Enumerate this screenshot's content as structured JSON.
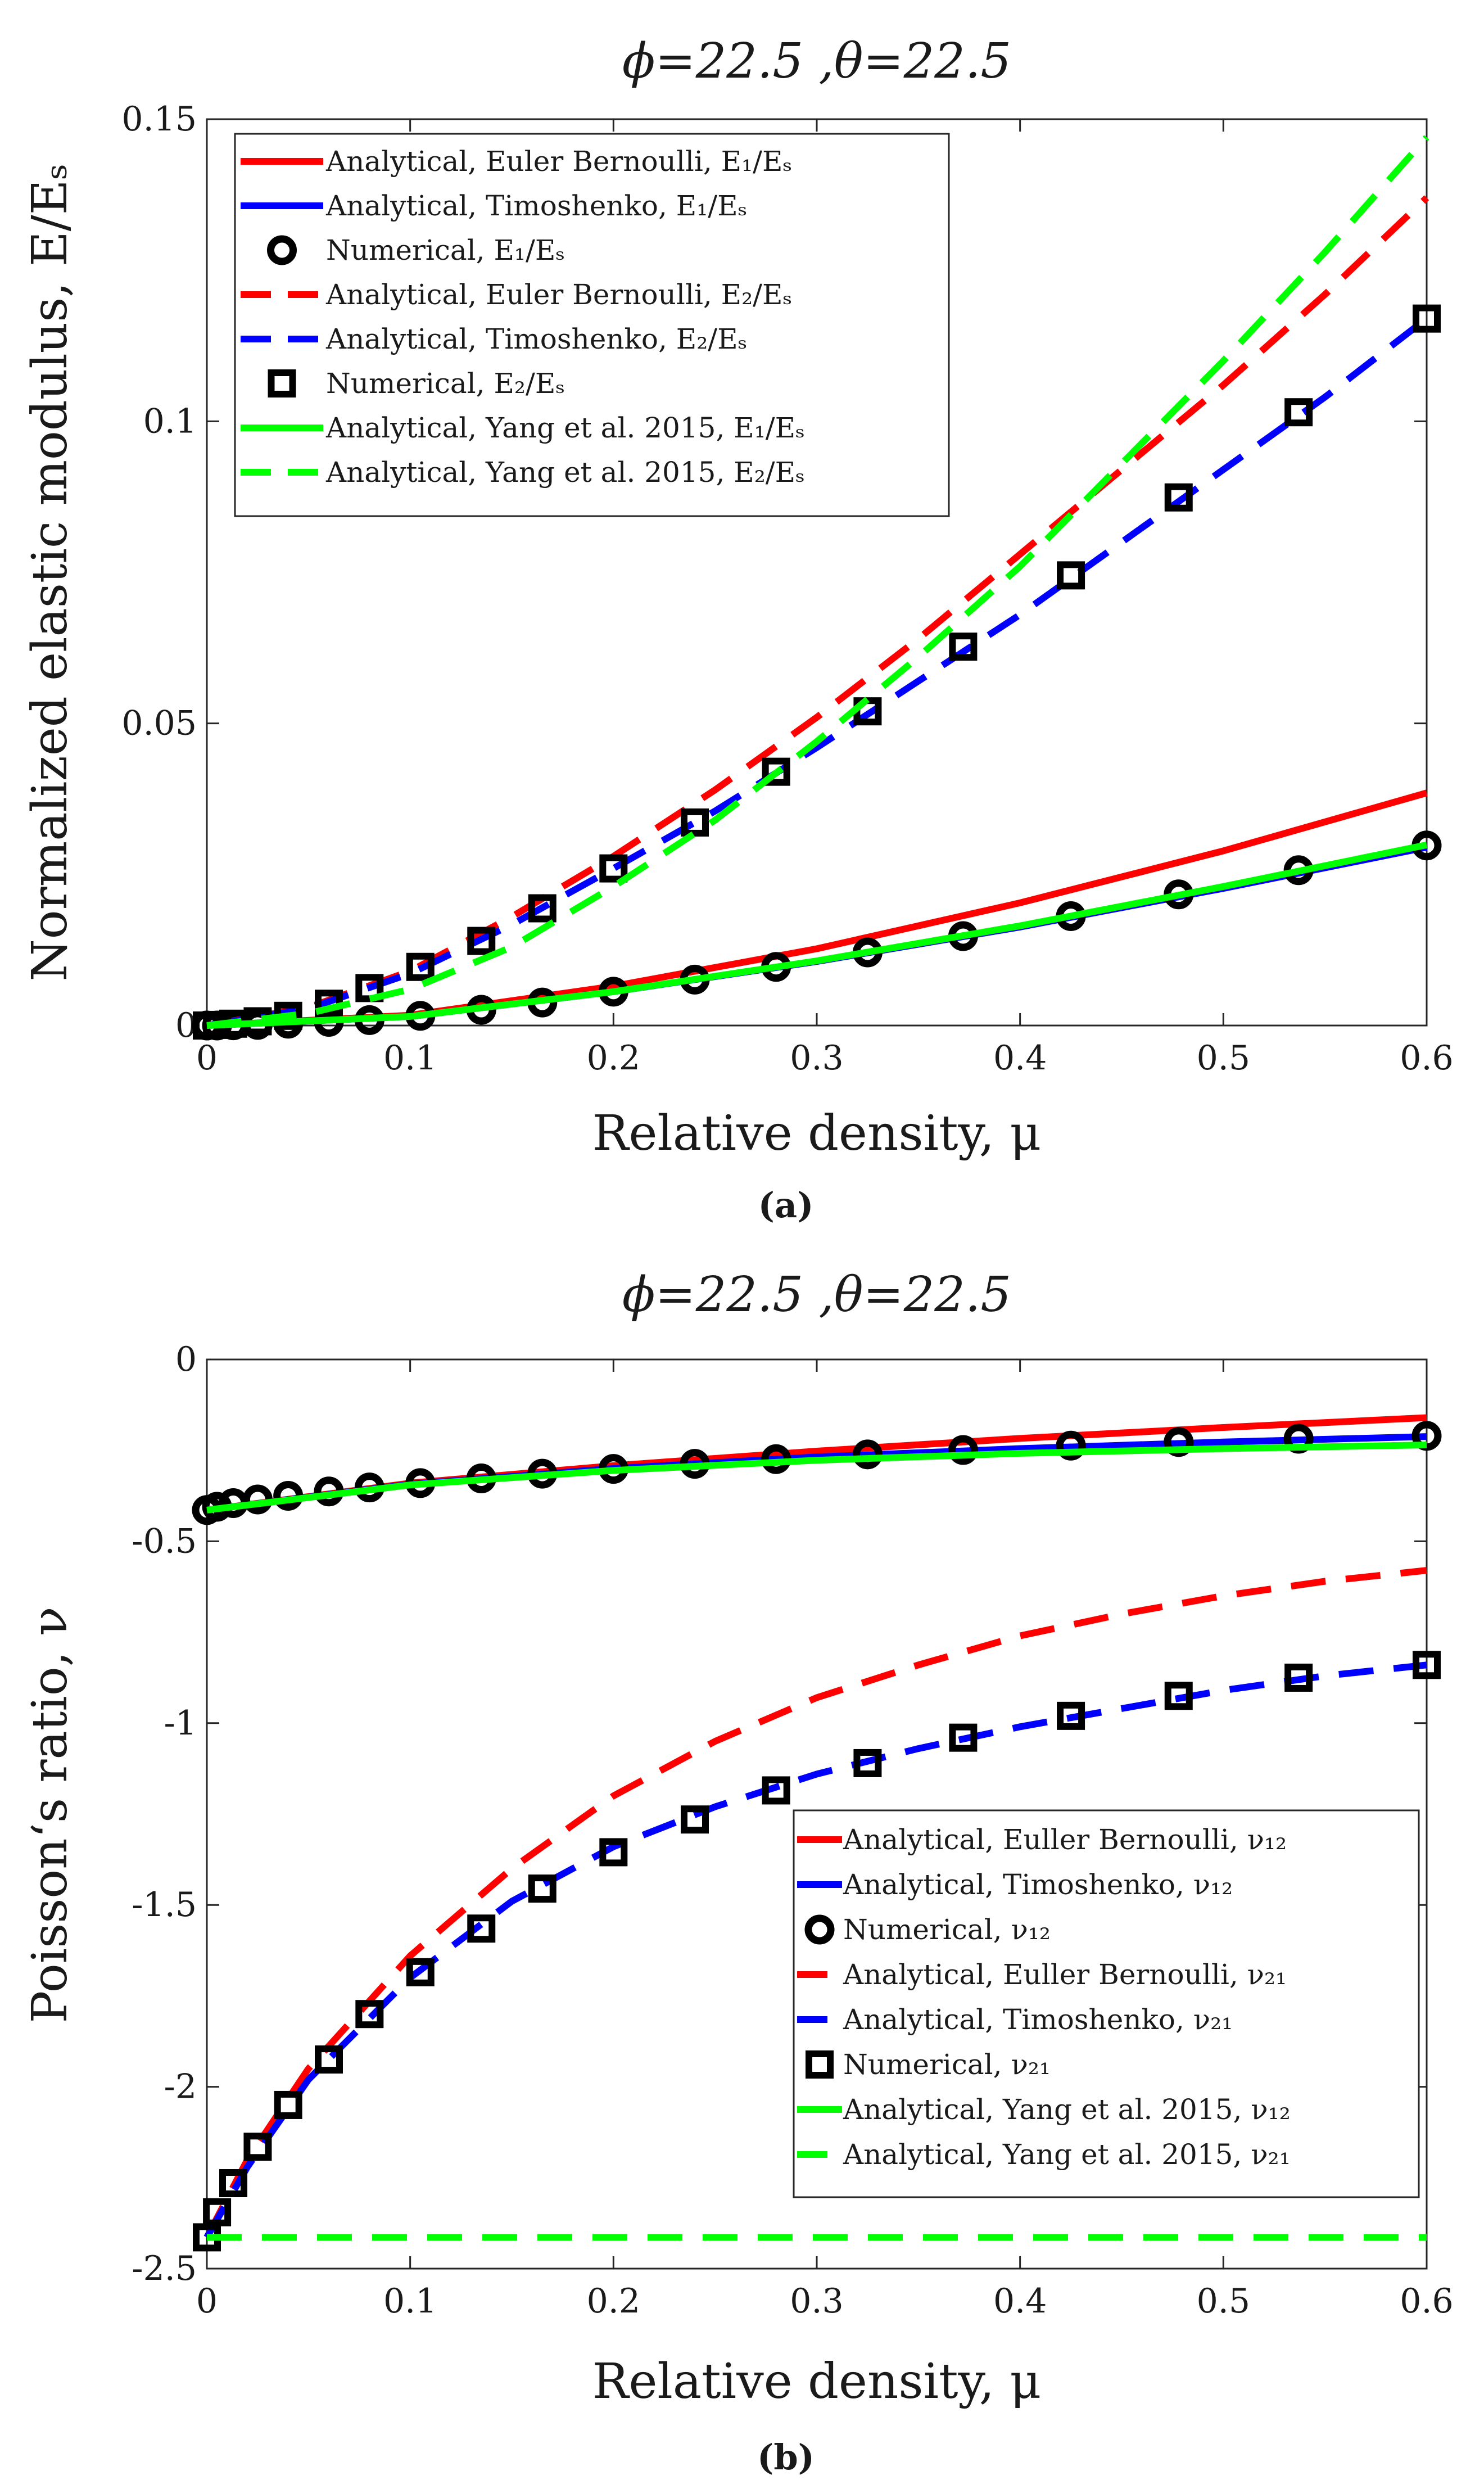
{
  "chart_data": [
    {
      "panel_label": "(a)",
      "type": "line",
      "title": "ϕ=22.5 ,θ=22.5",
      "xlabel": "Relative density, μ",
      "ylabel": "Normalized elastic modulus, E/Eₛ",
      "xlim": [
        0,
        0.6
      ],
      "ylim": [
        0,
        0.15
      ],
      "xticks": [
        "0",
        "0.1",
        "0.2",
        "0.3",
        "0.4",
        "0.5",
        "0.6"
      ],
      "yticks": [
        "0",
        "0.05",
        "0.1",
        "0.15"
      ],
      "legend": {
        "position": "top-left"
      },
      "series": [
        {
          "name": "Analytical, Euler Bernoulli, E₁/Eₛ",
          "style": "solid",
          "color": "#ff0000",
          "marker": "none",
          "x": [
            0,
            0.1,
            0.2,
            0.3,
            0.4,
            0.5,
            0.6
          ],
          "y": [
            0,
            0.0017,
            0.0065,
            0.0127,
            0.0203,
            0.0289,
            0.0385
          ]
        },
        {
          "name": "Analytical, Timoshenko, E₁/Eₛ",
          "style": "solid",
          "color": "#0000ff",
          "marker": "none",
          "x": [
            0,
            0.1,
            0.2,
            0.3,
            0.4,
            0.5,
            0.6
          ],
          "y": [
            0,
            0.0015,
            0.0056,
            0.0106,
            0.0163,
            0.0227,
            0.0295
          ]
        },
        {
          "name": "Numerical, E₁/Eₛ",
          "style": "none",
          "color": "#000000",
          "marker": "circle",
          "x": [
            0,
            0.005,
            0.013,
            0.025,
            0.04,
            0.06,
            0.08,
            0.105,
            0.135,
            0.165,
            0.2,
            0.24,
            0.28,
            0.325,
            0.372,
            0.425,
            0.478,
            0.537,
            0.6
          ],
          "y": [
            0,
            0,
            3e-05,
            0.0001,
            0.0003,
            0.0006,
            0.0009,
            0.0016,
            0.0026,
            0.0038,
            0.0056,
            0.0076,
            0.0097,
            0.0121,
            0.0148,
            0.0181,
            0.0217,
            0.0257,
            0.0298
          ]
        },
        {
          "name": "Analytical, Euler Bernoulli, E₂/Eₛ",
          "style": "dashed",
          "color": "#ff0000",
          "marker": "none",
          "x": [
            0,
            0.05,
            0.1,
            0.15,
            0.2,
            0.25,
            0.3,
            0.35,
            0.4,
            0.45,
            0.5,
            0.55,
            0.6
          ],
          "y": [
            0,
            0.003,
            0.009,
            0.018,
            0.028,
            0.039,
            0.051,
            0.064,
            0.078,
            0.092,
            0.106,
            0.121,
            0.137
          ]
        },
        {
          "name": "Analytical, Timoshenko, E₂/Eₛ",
          "style": "dashed",
          "color": "#0000ff",
          "marker": "none",
          "x": [
            0,
            0.05,
            0.1,
            0.15,
            0.2,
            0.25,
            0.3,
            0.35,
            0.4,
            0.45,
            0.5,
            0.55,
            0.6
          ],
          "y": [
            0,
            0.0028,
            0.0086,
            0.0167,
            0.026,
            0.0355,
            0.046,
            0.057,
            0.068,
            0.08,
            0.092,
            0.104,
            0.117
          ]
        },
        {
          "name": "Numerical, E₂/Eₛ",
          "style": "none",
          "color": "#000000",
          "marker": "square",
          "x": [
            0,
            0.005,
            0.013,
            0.025,
            0.04,
            0.06,
            0.08,
            0.105,
            0.135,
            0.165,
            0.2,
            0.24,
            0.28,
            0.325,
            0.372,
            0.425,
            0.478,
            0.537,
            0.6
          ],
          "y": [
            0,
            0.0001,
            0.0003,
            0.0007,
            0.0016,
            0.0036,
            0.0062,
            0.0097,
            0.014,
            0.0194,
            0.026,
            0.0336,
            0.042,
            0.052,
            0.0627,
            0.0745,
            0.0874,
            0.1015,
            0.117
          ]
        },
        {
          "name": "Analytical, Yang et al. 2015, E₁/Eₛ",
          "style": "solid",
          "color": "#00ff00",
          "marker": "none",
          "x": [
            0,
            0.1,
            0.2,
            0.3,
            0.4,
            0.5,
            0.6
          ],
          "y": [
            0,
            0.0015,
            0.0056,
            0.0107,
            0.0165,
            0.023,
            0.0299
          ]
        },
        {
          "name": "Analytical, Yang et al. 2015, E₂/Eₛ",
          "style": "dashed",
          "color": "#00ff00",
          "marker": "none",
          "x": [
            0,
            0.05,
            0.1,
            0.15,
            0.2,
            0.25,
            0.3,
            0.35,
            0.4,
            0.45,
            0.5,
            0.55,
            0.6
          ],
          "y": [
            0,
            0.002,
            0.006,
            0.013,
            0.023,
            0.034,
            0.047,
            0.061,
            0.076,
            0.093,
            0.11,
            0.128,
            0.147
          ]
        }
      ]
    },
    {
      "panel_label": "(b)",
      "type": "line",
      "title": "ϕ=22.5 ,θ=22.5",
      "xlabel": "Relative density, μ",
      "ylabel": "Poisson‘s ratio, ν",
      "xlim": [
        0,
        0.6
      ],
      "ylim": [
        -2.5,
        0
      ],
      "xticks": [
        "0",
        "0.1",
        "0.2",
        "0.3",
        "0.4",
        "0.5",
        "0.6"
      ],
      "yticks": [
        "0",
        "-0.5",
        "-1",
        "-1.5",
        "-2",
        "-2.5"
      ],
      "legend": {
        "position": "bottom-right"
      },
      "series": [
        {
          "name": "Analytical, Euller Bernoulli, ν₁₂",
          "style": "solid",
          "color": "#ff0000",
          "marker": "none",
          "x": [
            0,
            0.1,
            0.2,
            0.3,
            0.4,
            0.5,
            0.6
          ],
          "y": [
            -0.414,
            -0.34,
            -0.292,
            -0.252,
            -0.217,
            -0.187,
            -0.16
          ]
        },
        {
          "name": "Analytical, Timoshenko, ν₁₂",
          "style": "solid",
          "color": "#0000ff",
          "marker": "none",
          "x": [
            0,
            0.1,
            0.2,
            0.3,
            0.4,
            0.5,
            0.6
          ],
          "y": [
            -0.414,
            -0.343,
            -0.3,
            -0.268,
            -0.245,
            -0.227,
            -0.212
          ]
        },
        {
          "name": "Numerical, ν₁₂",
          "style": "none",
          "color": "#000000",
          "marker": "circle",
          "x": [
            0,
            0.005,
            0.013,
            0.025,
            0.04,
            0.06,
            0.08,
            0.105,
            0.135,
            0.165,
            0.2,
            0.24,
            0.28,
            0.325,
            0.372,
            0.425,
            0.478,
            0.537,
            0.6
          ],
          "y": [
            -0.414,
            -0.405,
            -0.395,
            -0.385,
            -0.375,
            -0.363,
            -0.352,
            -0.34,
            -0.327,
            -0.314,
            -0.301,
            -0.287,
            -0.274,
            -0.261,
            -0.249,
            -0.237,
            -0.227,
            -0.218,
            -0.21
          ]
        },
        {
          "name": "Analytical, Euller Bernoulli, ν₂₁",
          "style": "dashed",
          "color": "#ff0000",
          "marker": "none",
          "x": [
            0,
            0.02,
            0.05,
            0.1,
            0.15,
            0.2,
            0.25,
            0.3,
            0.35,
            0.4,
            0.45,
            0.5,
            0.55,
            0.6
          ],
          "y": [
            -2.414,
            -2.2,
            -1.95,
            -1.64,
            -1.4,
            -1.2,
            -1.05,
            -0.93,
            -0.84,
            -0.76,
            -0.7,
            -0.65,
            -0.61,
            -0.58
          ]
        },
        {
          "name": "Analytical, Timoshenko, ν₂₁",
          "style": "dashed",
          "color": "#0000ff",
          "marker": "none",
          "x": [
            0,
            0.02,
            0.05,
            0.1,
            0.15,
            0.2,
            0.25,
            0.3,
            0.35,
            0.4,
            0.45,
            0.5,
            0.55,
            0.6
          ],
          "y": [
            -2.414,
            -2.22,
            -1.98,
            -1.7,
            -1.49,
            -1.34,
            -1.23,
            -1.14,
            -1.07,
            -1.01,
            -0.96,
            -0.91,
            -0.87,
            -0.84
          ]
        },
        {
          "name": "Numerical, ν₂₁",
          "style": "none",
          "color": "#000000",
          "marker": "square",
          "x": [
            0,
            0.005,
            0.013,
            0.025,
            0.04,
            0.06,
            0.08,
            0.105,
            0.135,
            0.165,
            0.2,
            0.24,
            0.28,
            0.325,
            0.372,
            0.425,
            0.478,
            0.537,
            0.6
          ],
          "y": [
            -2.414,
            -2.345,
            -2.265,
            -2.165,
            -2.05,
            -1.925,
            -1.8,
            -1.685,
            -1.565,
            -1.455,
            -1.355,
            -1.265,
            -1.185,
            -1.11,
            -1.04,
            -0.98,
            -0.925,
            -0.875,
            -0.84
          ]
        },
        {
          "name": "Analytical, Yang et al. 2015, ν₁₂",
          "style": "solid",
          "color": "#00ff00",
          "marker": "none",
          "x": [
            0,
            0.1,
            0.2,
            0.3,
            0.4,
            0.5,
            0.6
          ],
          "y": [
            -0.414,
            -0.345,
            -0.305,
            -0.277,
            -0.258,
            -0.245,
            -0.235
          ]
        },
        {
          "name": "Analytical, Yang et al. 2015, ν₂₁",
          "style": "dashed",
          "color": "#00ff00",
          "marker": "none",
          "x": [
            0,
            0.6
          ],
          "y": [
            -2.414,
            -2.414
          ]
        }
      ]
    }
  ]
}
